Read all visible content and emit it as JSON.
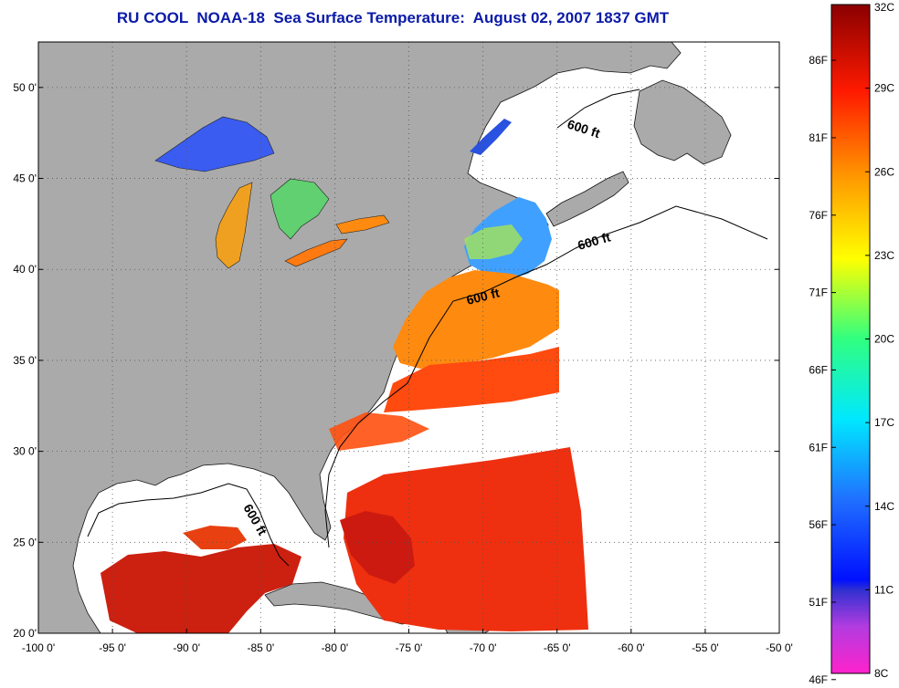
{
  "title": "RU COOL  NOAA-18  Sea Surface Temperature:  August 02, 2007 1837 GMT",
  "map": {
    "lon_range": [
      -100,
      -50
    ],
    "lat_range": [
      20,
      52.5
    ],
    "lon_ticks": [
      "-100 0'",
      "-95 0'",
      "-90 0'",
      "-85 0'",
      "-80 0'",
      "-75 0'",
      "-70 0'",
      "-65 0'",
      "-60 0'",
      "-55 0'",
      "-50 0'"
    ],
    "lat_ticks": [
      "20 0'",
      "25 0'",
      "30 0'",
      "35 0'",
      "40 0'",
      "45 0'",
      "50 0'"
    ],
    "contour_labels": [
      "600 ft",
      "600 ft",
      "600 ft",
      "600 ft"
    ],
    "colors": {
      "land": "#aaaaaa",
      "ocean_no_data": "#ffffff",
      "grid": "#555555"
    }
  },
  "colorbar": {
    "celsius_labels": [
      "32C",
      "29C",
      "26C",
      "23C",
      "20C",
      "17C",
      "14C",
      "11C",
      "8C"
    ],
    "fahrenheit_labels": [
      "86F",
      "81F",
      "76F",
      "71F",
      "66F",
      "61F",
      "56F",
      "51F",
      "46F"
    ],
    "range_c": [
      8,
      32
    ]
  }
}
